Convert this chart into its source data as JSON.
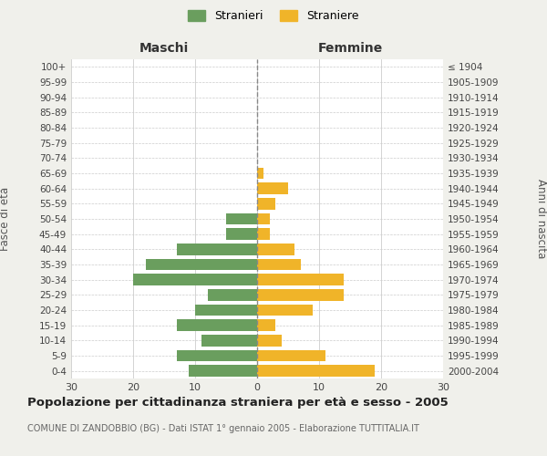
{
  "age_groups": [
    "0-4",
    "5-9",
    "10-14",
    "15-19",
    "20-24",
    "25-29",
    "30-34",
    "35-39",
    "40-44",
    "45-49",
    "50-54",
    "55-59",
    "60-64",
    "65-69",
    "70-74",
    "75-79",
    "80-84",
    "85-89",
    "90-94",
    "95-99",
    "100+"
  ],
  "birth_years": [
    "2000-2004",
    "1995-1999",
    "1990-1994",
    "1985-1989",
    "1980-1984",
    "1975-1979",
    "1970-1974",
    "1965-1969",
    "1960-1964",
    "1955-1959",
    "1950-1954",
    "1945-1949",
    "1940-1944",
    "1935-1939",
    "1930-1934",
    "1925-1929",
    "1920-1924",
    "1915-1919",
    "1910-1914",
    "1905-1909",
    "≤ 1904"
  ],
  "maschi": [
    11,
    13,
    9,
    13,
    10,
    8,
    20,
    18,
    13,
    5,
    5,
    0,
    0,
    0,
    0,
    0,
    0,
    0,
    0,
    0,
    0
  ],
  "femmine": [
    19,
    11,
    4,
    3,
    9,
    14,
    14,
    7,
    6,
    2,
    2,
    3,
    5,
    1,
    0,
    0,
    0,
    0,
    0,
    0,
    0
  ],
  "maschi_color": "#6a9e5e",
  "femmine_color": "#f0b429",
  "background_color": "#f0f0eb",
  "plot_bg_color": "#ffffff",
  "grid_color": "#cccccc",
  "title": "Popolazione per cittadinanza straniera per età e sesso - 2005",
  "subtitle": "COMUNE DI ZANDOBBIO (BG) - Dati ISTAT 1° gennaio 2005 - Elaborazione TUTTITALIA.IT",
  "legend_stranieri": "Stranieri",
  "legend_straniere": "Straniere",
  "xlabel_left": "Maschi",
  "xlabel_right": "Femmine",
  "ylabel_left": "Fasce di età",
  "ylabel_right": "Anni di nascita",
  "xlim": 30
}
